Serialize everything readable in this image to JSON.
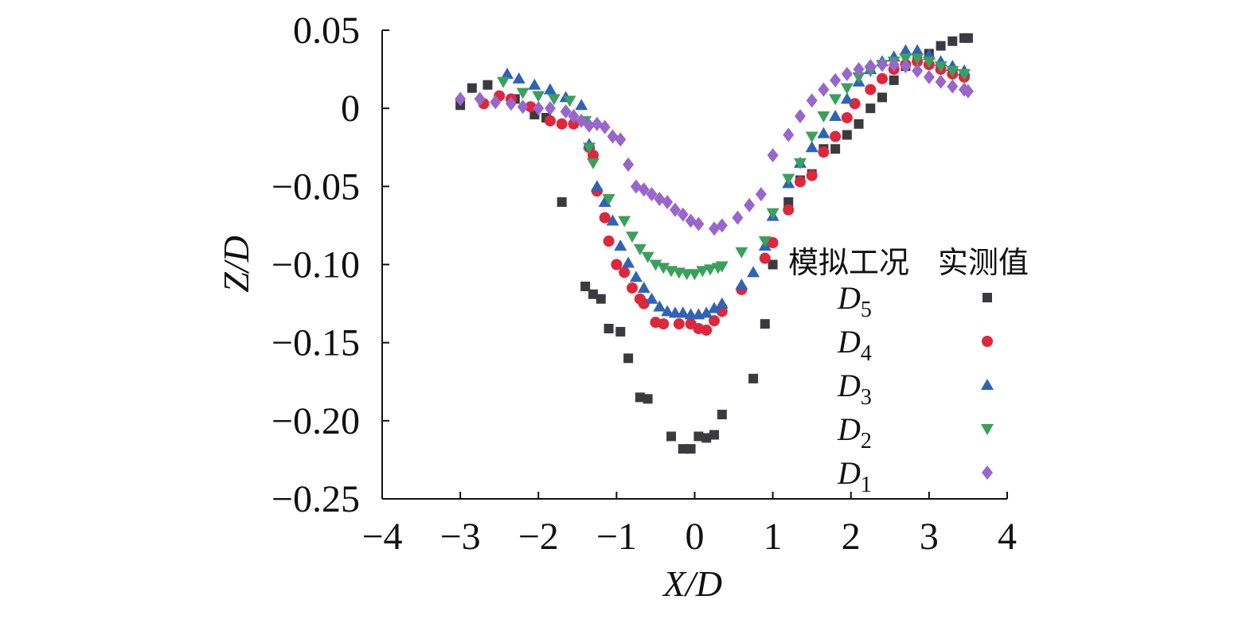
{
  "chart_data": {
    "type": "scatter",
    "xlabel": "X/D",
    "ylabel": "Z/D",
    "xlim": [
      -4,
      4
    ],
    "ylim": [
      -0.25,
      0.05
    ],
    "xticks": [
      -4,
      -3,
      -2,
      -1,
      0,
      1,
      2,
      3,
      4
    ],
    "yticks": [
      0.05,
      0,
      -0.05,
      -0.1,
      -0.15,
      -0.2,
      -0.25
    ],
    "ytick_labels": [
      "0.05",
      "0",
      "−0.05",
      "−0.10",
      "−0.15",
      "−0.20",
      "−0.25"
    ],
    "xtick_labels": [
      "−4",
      "−3",
      "−2",
      "−1",
      "0",
      "1",
      "2",
      "3",
      "4"
    ],
    "grid": false,
    "legend_position": "right",
    "legend_headers": [
      "模拟工况",
      "实测值"
    ],
    "series": [
      {
        "name": "D5",
        "label_main": "D",
        "label_sub": "5",
        "marker": "square",
        "color": "#3a3a3f",
        "points": [
          [
            -3,
            0.002
          ],
          [
            -2.85,
            0.013
          ],
          [
            -2.65,
            0.015
          ],
          [
            -2.3,
            0.006
          ],
          [
            -2.05,
            -0.004
          ],
          [
            -1.9,
            -0.006
          ],
          [
            -1.7,
            -0.06
          ],
          [
            -1.4,
            -0.114
          ],
          [
            -1.3,
            -0.119
          ],
          [
            -1.2,
            -0.122
          ],
          [
            -1.1,
            -0.141
          ],
          [
            -0.95,
            -0.143
          ],
          [
            -0.85,
            -0.16
          ],
          [
            -0.7,
            -0.185
          ],
          [
            -0.6,
            -0.186
          ],
          [
            -0.3,
            -0.21
          ],
          [
            -0.15,
            -0.218
          ],
          [
            -0.05,
            -0.218
          ],
          [
            0.05,
            -0.21
          ],
          [
            0.15,
            -0.211
          ],
          [
            0.25,
            -0.209
          ],
          [
            0.35,
            -0.196
          ],
          [
            0.75,
            -0.173
          ],
          [
            0.9,
            -0.138
          ],
          [
            1.0,
            -0.1
          ],
          [
            1.2,
            -0.06
          ],
          [
            1.35,
            -0.046
          ],
          [
            1.5,
            -0.042
          ],
          [
            1.65,
            -0.026
          ],
          [
            1.8,
            -0.026
          ],
          [
            1.95,
            -0.017
          ],
          [
            2.1,
            -0.01
          ],
          [
            2.25,
            0.0
          ],
          [
            2.4,
            0.007
          ],
          [
            2.55,
            0.018
          ],
          [
            2.7,
            0.027
          ],
          [
            2.85,
            0.031
          ],
          [
            3.0,
            0.035
          ],
          [
            3.15,
            0.04
          ],
          [
            3.3,
            0.043
          ],
          [
            3.45,
            0.045
          ],
          [
            3.5,
            0.045
          ]
        ]
      },
      {
        "name": "D4",
        "label_main": "D",
        "label_sub": "4",
        "marker": "circle",
        "color": "#e0263a",
        "points": [
          [
            -2.7,
            0.003
          ],
          [
            -2.5,
            0.008
          ],
          [
            -2.35,
            0.006
          ],
          [
            -2.1,
            0.001
          ],
          [
            -1.85,
            -0.008
          ],
          [
            -1.7,
            -0.01
          ],
          [
            -1.55,
            -0.01
          ],
          [
            -1.35,
            -0.025
          ],
          [
            -1.3,
            -0.03
          ],
          [
            -1.25,
            -0.053
          ],
          [
            -1.15,
            -0.07
          ],
          [
            -1.1,
            -0.085
          ],
          [
            -1.0,
            -0.1
          ],
          [
            -0.9,
            -0.105
          ],
          [
            -0.8,
            -0.115
          ],
          [
            -0.7,
            -0.122
          ],
          [
            -0.65,
            -0.125
          ],
          [
            -0.5,
            -0.137
          ],
          [
            -0.4,
            -0.138
          ],
          [
            -0.2,
            -0.138
          ],
          [
            -0.05,
            -0.138
          ],
          [
            0.05,
            -0.141
          ],
          [
            0.15,
            -0.142
          ],
          [
            0.25,
            -0.136
          ],
          [
            0.35,
            -0.13
          ],
          [
            0.6,
            -0.116
          ],
          [
            0.9,
            -0.096
          ],
          [
            1.0,
            -0.086
          ],
          [
            1.2,
            -0.065
          ],
          [
            1.35,
            -0.047
          ],
          [
            1.5,
            -0.043
          ],
          [
            1.65,
            -0.028
          ],
          [
            1.8,
            -0.018
          ],
          [
            1.95,
            -0.006
          ],
          [
            2.05,
            0.003
          ],
          [
            2.25,
            0.012
          ],
          [
            2.4,
            0.019
          ],
          [
            2.55,
            0.025
          ],
          [
            2.7,
            0.028
          ],
          [
            2.85,
            0.03
          ],
          [
            3.0,
            0.028
          ],
          [
            3.15,
            0.025
          ],
          [
            3.3,
            0.022
          ],
          [
            3.45,
            0.02
          ]
        ]
      },
      {
        "name": "D3",
        "label_main": "D",
        "label_sub": "3",
        "marker": "triangle-up",
        "color": "#2f63b8",
        "points": [
          [
            -2.4,
            0.022
          ],
          [
            -2.25,
            0.019
          ],
          [
            -2.05,
            0.015
          ],
          [
            -1.85,
            0.012
          ],
          [
            -1.65,
            0.007
          ],
          [
            -1.45,
            0.002
          ],
          [
            -1.35,
            -0.023
          ],
          [
            -1.25,
            -0.05
          ],
          [
            -1.15,
            -0.06
          ],
          [
            -1.05,
            -0.072
          ],
          [
            -0.95,
            -0.088
          ],
          [
            -0.85,
            -0.099
          ],
          [
            -0.75,
            -0.108
          ],
          [
            -0.65,
            -0.115
          ],
          [
            -0.55,
            -0.122
          ],
          [
            -0.45,
            -0.127
          ],
          [
            -0.35,
            -0.13
          ],
          [
            -0.25,
            -0.131
          ],
          [
            -0.15,
            -0.131
          ],
          [
            -0.05,
            -0.132
          ],
          [
            0.05,
            -0.132
          ],
          [
            0.15,
            -0.131
          ],
          [
            0.25,
            -0.128
          ],
          [
            0.35,
            -0.125
          ],
          [
            0.6,
            -0.113
          ],
          [
            0.75,
            -0.105
          ],
          [
            0.9,
            -0.088
          ],
          [
            1.0,
            -0.069
          ],
          [
            1.2,
            -0.048
          ],
          [
            1.35,
            -0.035
          ],
          [
            1.5,
            -0.025
          ],
          [
            1.65,
            -0.016
          ],
          [
            1.8,
            -0.005
          ],
          [
            1.95,
            0.006
          ],
          [
            2.1,
            0.017
          ],
          [
            2.25,
            0.025
          ],
          [
            2.4,
            0.03
          ],
          [
            2.55,
            0.033
          ],
          [
            2.7,
            0.037
          ],
          [
            2.85,
            0.037
          ],
          [
            3.0,
            0.034
          ],
          [
            3.15,
            0.03
          ],
          [
            3.3,
            0.027
          ],
          [
            3.45,
            0.024
          ]
        ]
      },
      {
        "name": "D2",
        "label_main": "D",
        "label_sub": "2",
        "marker": "triangle-down",
        "color": "#3aa15a",
        "points": [
          [
            -2.45,
            0.017
          ],
          [
            -2.2,
            0.01
          ],
          [
            -2.0,
            0.008
          ],
          [
            -1.8,
            0.006
          ],
          [
            -1.6,
            0.005
          ],
          [
            -1.4,
            -0.008
          ],
          [
            -1.35,
            -0.025
          ],
          [
            -1.3,
            -0.035
          ],
          [
            -1.1,
            -0.058
          ],
          [
            -0.9,
            -0.072
          ],
          [
            -0.8,
            -0.082
          ],
          [
            -0.7,
            -0.09
          ],
          [
            -0.6,
            -0.095
          ],
          [
            -0.5,
            -0.1
          ],
          [
            -0.4,
            -0.102
          ],
          [
            -0.3,
            -0.104
          ],
          [
            -0.2,
            -0.105
          ],
          [
            -0.1,
            -0.106
          ],
          [
            0.0,
            -0.106
          ],
          [
            0.1,
            -0.104
          ],
          [
            0.2,
            -0.103
          ],
          [
            0.3,
            -0.102
          ],
          [
            0.35,
            -0.101
          ],
          [
            0.6,
            -0.092
          ],
          [
            0.9,
            -0.085
          ],
          [
            1.0,
            -0.067
          ],
          [
            1.2,
            -0.045
          ],
          [
            1.35,
            -0.035
          ],
          [
            1.5,
            -0.018
          ],
          [
            1.65,
            -0.005
          ],
          [
            1.8,
            0.006
          ],
          [
            1.95,
            0.013
          ],
          [
            2.1,
            0.02
          ],
          [
            2.25,
            0.024
          ],
          [
            2.4,
            0.028
          ],
          [
            2.55,
            0.03
          ],
          [
            2.7,
            0.032
          ],
          [
            2.85,
            0.032
          ],
          [
            3.0,
            0.03
          ],
          [
            3.15,
            0.027
          ],
          [
            3.3,
            0.024
          ],
          [
            3.45,
            0.022
          ]
        ]
      },
      {
        "name": "D1",
        "label_main": "D",
        "label_sub": "1",
        "marker": "diamond",
        "color": "#9966cc",
        "points": [
          [
            -3,
            0.006
          ],
          [
            -2.75,
            0.006
          ],
          [
            -2.55,
            0.004
          ],
          [
            -2.35,
            0.003
          ],
          [
            -2.2,
            0.001
          ],
          [
            -2.0,
            0.0
          ],
          [
            -1.85,
            0.0
          ],
          [
            -1.65,
            -0.002
          ],
          [
            -1.55,
            -0.005
          ],
          [
            -1.45,
            -0.008
          ],
          [
            -1.35,
            -0.011
          ],
          [
            -1.25,
            -0.01
          ],
          [
            -1.15,
            -0.012
          ],
          [
            -1.05,
            -0.018
          ],
          [
            -0.95,
            -0.02
          ],
          [
            -0.85,
            -0.036
          ],
          [
            -0.75,
            -0.05
          ],
          [
            -0.65,
            -0.052
          ],
          [
            -0.55,
            -0.055
          ],
          [
            -0.45,
            -0.058
          ],
          [
            -0.35,
            -0.06
          ],
          [
            -0.25,
            -0.065
          ],
          [
            -0.15,
            -0.068
          ],
          [
            -0.05,
            -0.072
          ],
          [
            0.05,
            -0.074
          ],
          [
            0.25,
            -0.077
          ],
          [
            0.35,
            -0.075
          ],
          [
            0.55,
            -0.07
          ],
          [
            0.7,
            -0.062
          ],
          [
            0.85,
            -0.055
          ],
          [
            1.0,
            -0.03
          ],
          [
            1.2,
            -0.017
          ],
          [
            1.35,
            -0.005
          ],
          [
            1.5,
            0.005
          ],
          [
            1.65,
            0.012
          ],
          [
            1.8,
            0.018
          ],
          [
            1.95,
            0.022
          ],
          [
            2.1,
            0.025
          ],
          [
            2.25,
            0.027
          ],
          [
            2.4,
            0.028
          ],
          [
            2.55,
            0.028
          ],
          [
            2.7,
            0.027
          ],
          [
            2.85,
            0.024
          ],
          [
            3.0,
            0.02
          ],
          [
            3.15,
            0.017
          ],
          [
            3.3,
            0.014
          ],
          [
            3.45,
            0.012
          ],
          [
            3.5,
            0.011
          ]
        ]
      }
    ]
  }
}
